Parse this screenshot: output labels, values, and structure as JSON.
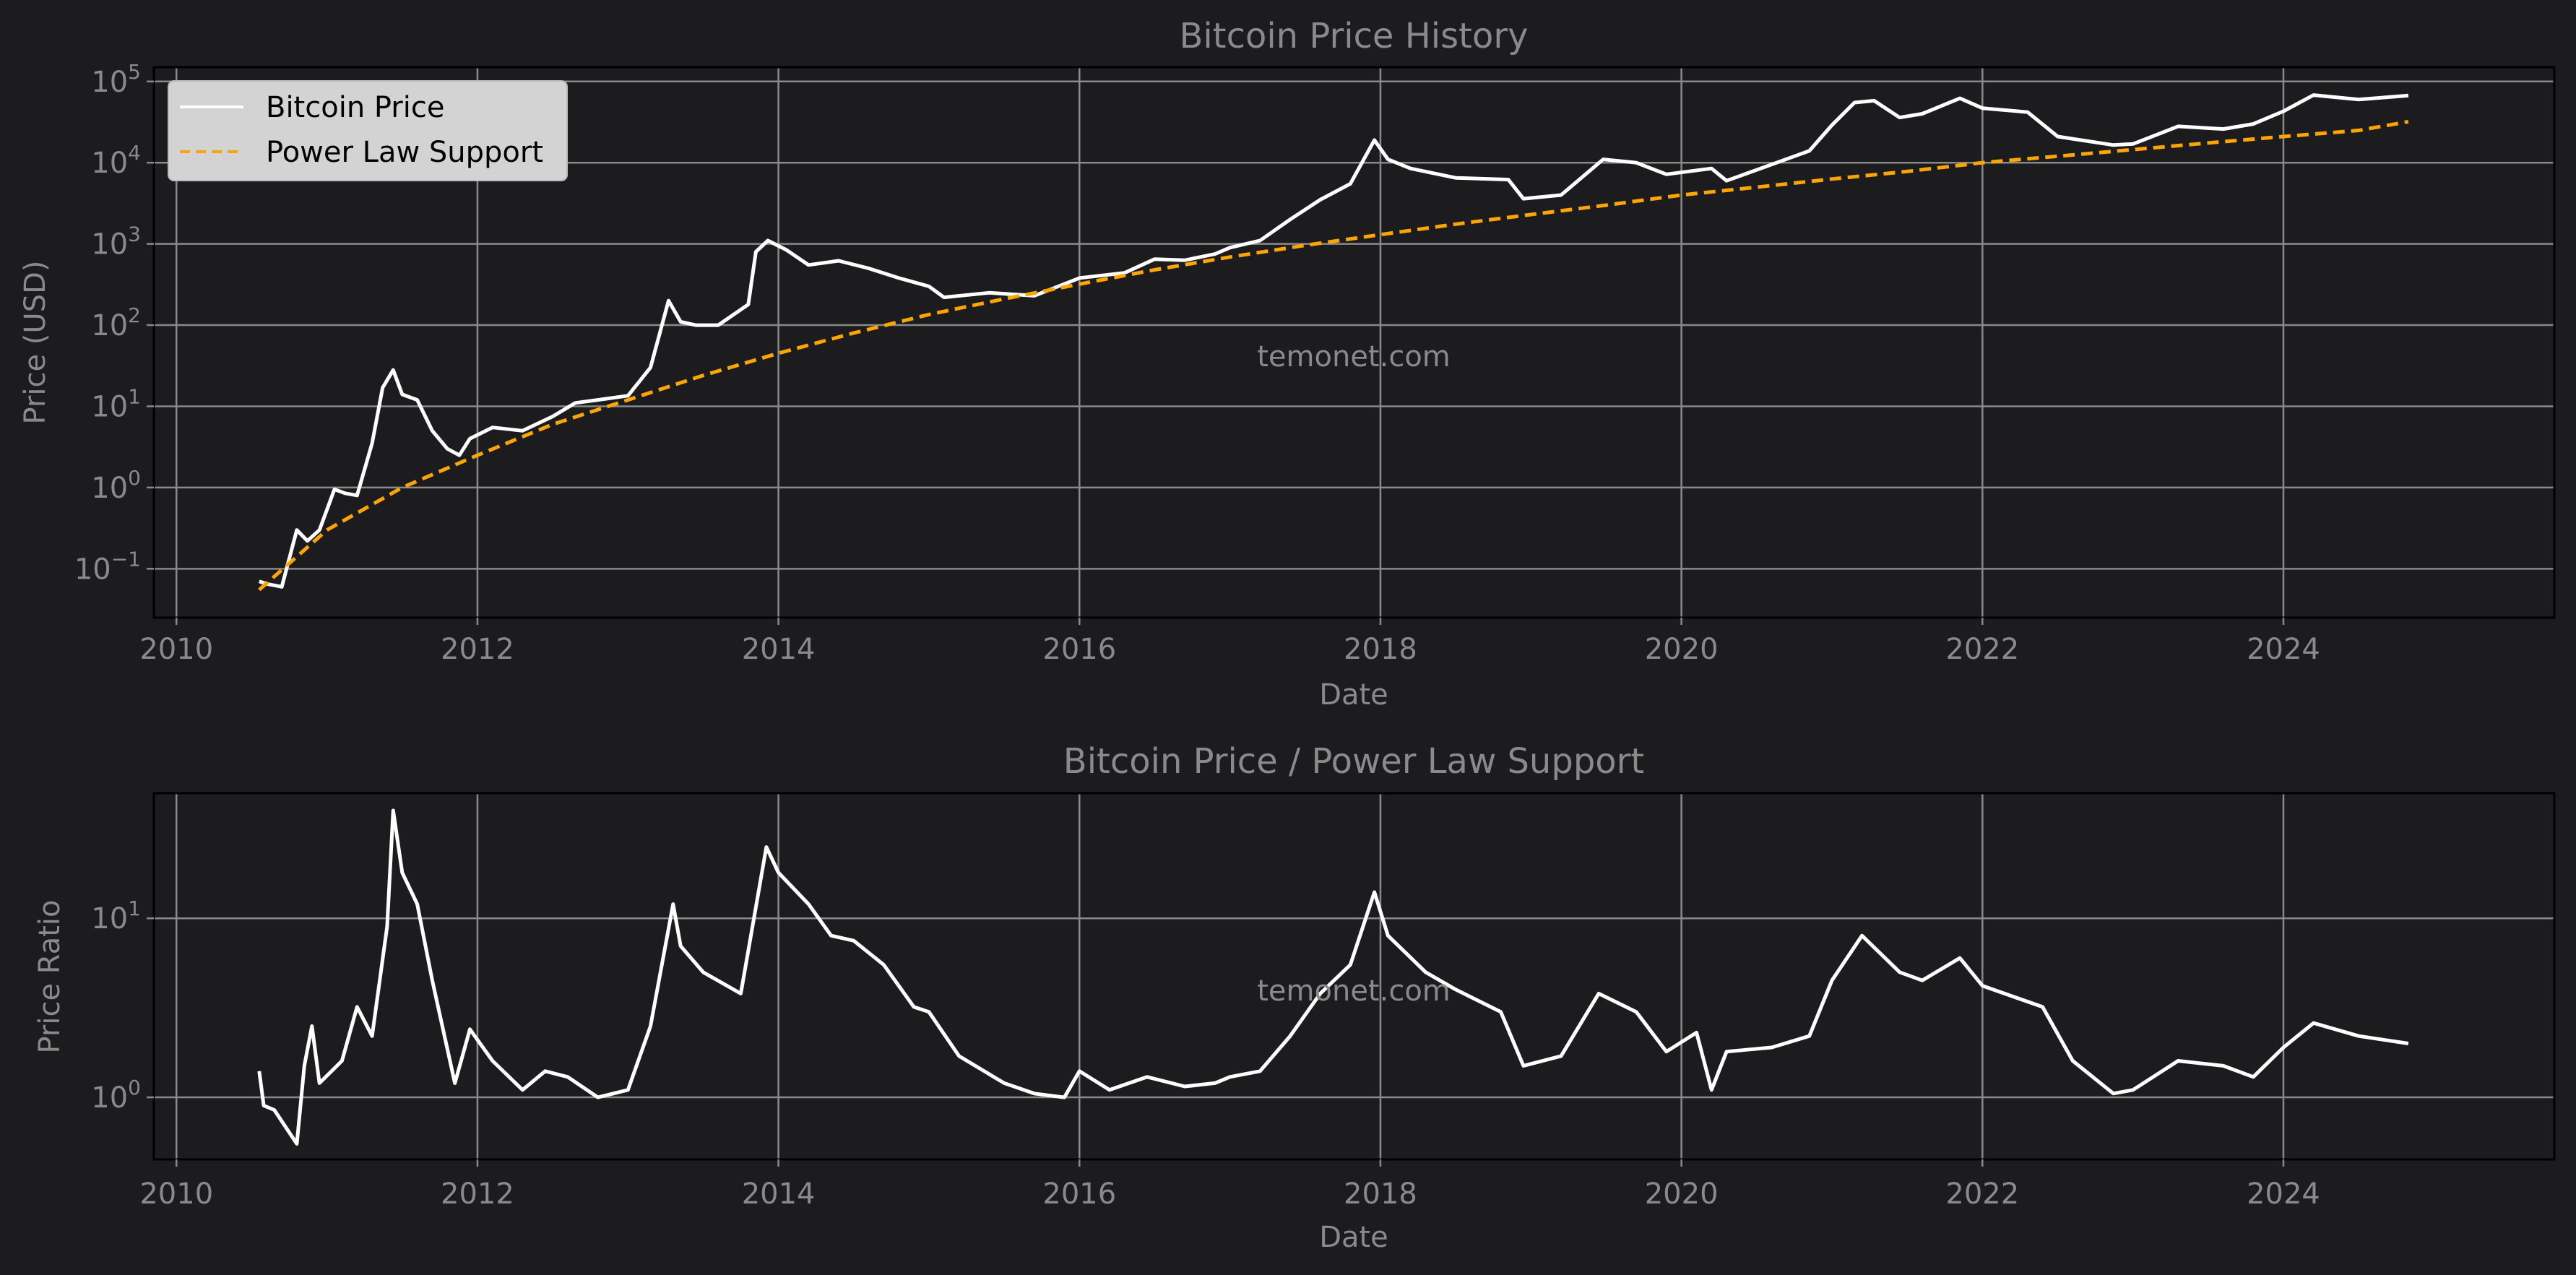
{
  "colors": {
    "background": "#1c1c1e",
    "price_line": "#ffffff",
    "support_line": "#ffa500",
    "grid": "#8a8a8a",
    "text": "#8a8a8a",
    "legend_bg": "#d3d3d3"
  },
  "watermark": "temonet.com",
  "chart_data": [
    {
      "type": "line",
      "title": "Bitcoin Price History",
      "xlabel": "Date",
      "ylabel": "Price (USD)",
      "yscale": "log",
      "xlim": [
        2009.85,
        2025.8
      ],
      "ylim": [
        0.025,
        150000
      ],
      "grid": true,
      "legend": "top-left",
      "x_ticks": [
        {
          "value": 2010,
          "label": "2010"
        },
        {
          "value": 2012,
          "label": "2012"
        },
        {
          "value": 2014,
          "label": "2014"
        },
        {
          "value": 2016,
          "label": "2016"
        },
        {
          "value": 2018,
          "label": "2018"
        },
        {
          "value": 2020,
          "label": "2020"
        },
        {
          "value": 2022,
          "label": "2022"
        },
        {
          "value": 2024,
          "label": "2024"
        }
      ],
      "y_ticks": [
        {
          "value": 0.1,
          "base": "10",
          "exp": "−1"
        },
        {
          "value": 1,
          "base": "10",
          "exp": "0"
        },
        {
          "value": 10,
          "base": "10",
          "exp": "1"
        },
        {
          "value": 100,
          "base": "10",
          "exp": "2"
        },
        {
          "value": 1000,
          "base": "10",
          "exp": "3"
        },
        {
          "value": 10000,
          "base": "10",
          "exp": "4"
        },
        {
          "value": 100000,
          "base": "10",
          "exp": "5"
        }
      ],
      "series": [
        {
          "name": "Bitcoin Price",
          "style": "solid",
          "x": [
            2010.55,
            2010.6,
            2010.7,
            2010.8,
            2010.87,
            2010.95,
            2011.05,
            2011.12,
            2011.2,
            2011.3,
            2011.37,
            2011.44,
            2011.5,
            2011.6,
            2011.7,
            2011.8,
            2011.88,
            2011.95,
            2012.1,
            2012.3,
            2012.5,
            2012.65,
            2012.8,
            2013.0,
            2013.15,
            2013.27,
            2013.35,
            2013.45,
            2013.6,
            2013.8,
            2013.85,
            2013.93,
            2014.05,
            2014.2,
            2014.4,
            2014.6,
            2014.8,
            2015.0,
            2015.1,
            2015.4,
            2015.7,
            2016.0,
            2016.3,
            2016.5,
            2016.7,
            2016.9,
            2017.0,
            2017.2,
            2017.4,
            2017.6,
            2017.8,
            2017.96,
            2018.05,
            2018.2,
            2018.5,
            2018.85,
            2018.95,
            2019.2,
            2019.48,
            2019.7,
            2019.9,
            2020.2,
            2020.3,
            2020.6,
            2020.85,
            2021.0,
            2021.15,
            2021.28,
            2021.45,
            2021.6,
            2021.85,
            2022.0,
            2022.3,
            2022.5,
            2022.87,
            2023.0,
            2023.3,
            2023.6,
            2023.8,
            2024.0,
            2024.2,
            2024.5,
            2024.83
          ],
          "y": [
            0.07,
            0.065,
            0.06,
            0.3,
            0.22,
            0.3,
            0.95,
            0.85,
            0.8,
            3.5,
            17,
            28,
            14,
            12,
            5,
            3,
            2.5,
            4,
            5.5,
            5,
            7.5,
            11,
            12,
            13.5,
            30,
            200,
            110,
            100,
            100,
            180,
            800,
            1100,
            850,
            550,
            620,
            500,
            380,
            300,
            220,
            250,
            230,
            380,
            440,
            650,
            630,
            750,
            900,
            1100,
            2000,
            3500,
            5500,
            19000,
            11000,
            8500,
            6500,
            6200,
            3600,
            4000,
            11000,
            10000,
            7200,
            8500,
            6000,
            9500,
            14000,
            29000,
            55000,
            58000,
            36000,
            40000,
            62000,
            47000,
            42000,
            21000,
            16500,
            17000,
            28000,
            26000,
            30000,
            43000,
            68000,
            60000,
            67000
          ]
        },
        {
          "name": "Power Law Support",
          "style": "dashed",
          "x": [
            2010.55,
            2011.0,
            2011.5,
            2012.0,
            2012.5,
            2013.0,
            2013.5,
            2014.0,
            2014.5,
            2015.0,
            2015.5,
            2016.0,
            2016.5,
            2017.0,
            2017.5,
            2018.0,
            2018.5,
            2019.0,
            2019.5,
            2020.0,
            2020.5,
            2021.0,
            2021.5,
            2022.0,
            2022.5,
            2023.0,
            2023.5,
            2024.0,
            2024.5,
            2024.83
          ],
          "y": [
            0.055,
            0.3,
            1.0,
            2.5,
            6.0,
            12,
            24,
            45,
            80,
            135,
            210,
            320,
            480,
            690,
            960,
            1300,
            1750,
            2300,
            3000,
            4000,
            5000,
            6300,
            7800,
            10000,
            12000,
            14500,
            17500,
            21000,
            25000,
            32000
          ]
        }
      ]
    },
    {
      "type": "line",
      "title": "Bitcoin Price / Power Law Support",
      "xlabel": "Date",
      "ylabel": "Price Ratio",
      "yscale": "log",
      "xlim": [
        2009.85,
        2025.8
      ],
      "ylim": [
        0.45,
        50
      ],
      "grid": true,
      "x_ticks": [
        {
          "value": 2010,
          "label": "2010"
        },
        {
          "value": 2012,
          "label": "2012"
        },
        {
          "value": 2014,
          "label": "2014"
        },
        {
          "value": 2016,
          "label": "2016"
        },
        {
          "value": 2018,
          "label": "2018"
        },
        {
          "value": 2020,
          "label": "2020"
        },
        {
          "value": 2022,
          "label": "2022"
        },
        {
          "value": 2024,
          "label": "2024"
        }
      ],
      "y_ticks": [
        {
          "value": 1,
          "base": "10",
          "exp": "0"
        },
        {
          "value": 10,
          "base": "10",
          "exp": "1"
        }
      ],
      "series": [
        {
          "style": "solid",
          "x": [
            2010.55,
            2010.58,
            2010.65,
            2010.8,
            2010.85,
            2010.9,
            2010.95,
            2011.1,
            2011.2,
            2011.3,
            2011.4,
            2011.44,
            2011.5,
            2011.6,
            2011.7,
            2011.85,
            2011.95,
            2012.1,
            2012.3,
            2012.45,
            2012.6,
            2012.8,
            2013.0,
            2013.15,
            2013.3,
            2013.35,
            2013.5,
            2013.75,
            2013.92,
            2014.0,
            2014.2,
            2014.35,
            2014.5,
            2014.7,
            2014.9,
            2015.0,
            2015.2,
            2015.5,
            2015.7,
            2015.9,
            2016.0,
            2016.2,
            2016.45,
            2016.7,
            2016.9,
            2017.0,
            2017.2,
            2017.4,
            2017.6,
            2017.8,
            2017.96,
            2018.05,
            2018.3,
            2018.5,
            2018.8,
            2018.95,
            2019.2,
            2019.45,
            2019.7,
            2019.9,
            2020.1,
            2020.2,
            2020.3,
            2020.6,
            2020.85,
            2021.0,
            2021.2,
            2021.45,
            2021.6,
            2021.85,
            2022.0,
            2022.4,
            2022.6,
            2022.87,
            2023.0,
            2023.3,
            2023.6,
            2023.8,
            2024.0,
            2024.2,
            2024.5,
            2024.83
          ],
          "y": [
            1.4,
            0.9,
            0.85,
            0.55,
            1.5,
            2.5,
            1.2,
            1.6,
            3.2,
            2.2,
            9,
            40,
            18,
            12,
            4.5,
            1.2,
            2.4,
            1.6,
            1.1,
            1.4,
            1.3,
            1.0,
            1.1,
            2.5,
            12,
            7,
            5,
            3.8,
            25,
            18,
            12,
            8,
            7.5,
            5.5,
            3.2,
            3,
            1.7,
            1.2,
            1.05,
            1.0,
            1.4,
            1.1,
            1.3,
            1.15,
            1.2,
            1.3,
            1.4,
            2.2,
            3.8,
            5.5,
            14,
            8,
            5,
            4,
            3,
            1.5,
            1.7,
            3.8,
            3.0,
            1.8,
            2.3,
            1.1,
            1.8,
            1.9,
            2.2,
            4.5,
            8,
            5,
            4.5,
            6,
            4.2,
            3.2,
            1.6,
            1.05,
            1.1,
            1.6,
            1.5,
            1.3,
            1.9,
            2.6,
            2.2,
            2.0
          ]
        }
      ]
    }
  ]
}
